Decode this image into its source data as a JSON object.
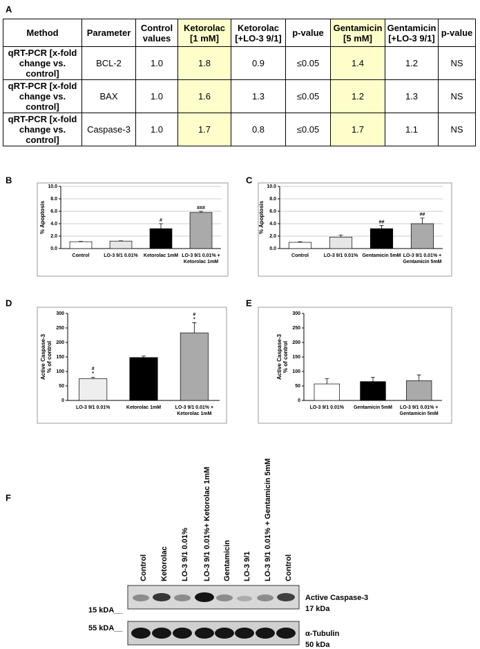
{
  "table": {
    "label": "A",
    "header": [
      "Method",
      "Parameter",
      "Control values",
      "Ketorolac [1 mM]",
      "Ketorolac [+LO-3 9/1]",
      "p-value",
      "Gentamicin [5 mM]",
      "Gentamicin [+LO-3 9/1]",
      "p-value"
    ],
    "highlight_columns": [
      3,
      6
    ],
    "highlight_color": "#ffffcc",
    "rows": [
      [
        "qRT-PCR [x-fold change vs. control]",
        "BCL-2",
        "1.0",
        "1.8",
        "0.9",
        "≤0.05",
        "1.4",
        "1.2",
        "NS"
      ],
      [
        "qRT-PCR [x-fold change vs. control]",
        "BAX",
        "1.0",
        "1.6",
        "1.3",
        "≤0.05",
        "1.2",
        "1.3",
        "NS"
      ],
      [
        "qRT-PCR [x-fold change vs. control]",
        "Caspase-3",
        "1.0",
        "1.7",
        "0.8",
        "≤0.05",
        "1.7",
        "1.1",
        "NS"
      ]
    ]
  },
  "chart_data": [
    {
      "label": "B",
      "type": "bar",
      "ylabel": [
        "% Apoptosis"
      ],
      "categories": [
        [
          "Control"
        ],
        [
          "LO-3 9/1 0.01%"
        ],
        [
          "Ketorolac 1mM"
        ],
        [
          "LO-3 9/1 0.01% +",
          "Ketorolac 1mM"
        ]
      ],
      "values": [
        1.1,
        1.2,
        3.2,
        5.8
      ],
      "errors": [
        0.05,
        0.05,
        0.8,
        0.2
      ],
      "annotations": [
        null,
        null,
        [
          "#"
        ],
        [
          "###"
        ]
      ],
      "colors": [
        "#ffffff",
        "#e6e6e6",
        "#000000",
        "#aaaaaa"
      ],
      "ylim": [
        0,
        10
      ],
      "yticks": [
        {
          "value": 0,
          "label": "0.0"
        },
        {
          "value": 2,
          "label": "2.0"
        },
        {
          "value": 4,
          "label": "4.0"
        },
        {
          "value": 6,
          "label": "6.0"
        },
        {
          "value": 8,
          "label": "8.0"
        },
        {
          "value": 10,
          "label": "10.0"
        }
      ],
      "grid": true
    },
    {
      "label": "C",
      "type": "bar",
      "ylabel": [
        "% Apoptosis"
      ],
      "categories": [
        [
          "Control"
        ],
        [
          "LO-3 9/1 0.01%"
        ],
        [
          "Gentamicin 5mM"
        ],
        [
          "LO-3 9/1 0.01% +",
          "Gentamicin 5mM"
        ]
      ],
      "values": [
        1.0,
        1.85,
        3.2,
        4.0
      ],
      "errors": [
        0.1,
        0.3,
        0.5,
        0.9
      ],
      "annotations": [
        null,
        null,
        [
          "##"
        ],
        [
          "##"
        ]
      ],
      "colors": [
        "#ffffff",
        "#e6e6e6",
        "#000000",
        "#aaaaaa"
      ],
      "ylim": [
        0,
        10
      ],
      "yticks": [
        {
          "value": 0,
          "label": "0.0"
        },
        {
          "value": 2,
          "label": "2.0"
        },
        {
          "value": 4,
          "label": "4.0"
        },
        {
          "value": 6,
          "label": "6.0"
        },
        {
          "value": 8,
          "label": "8.0"
        },
        {
          "value": 10,
          "label": "10.0"
        }
      ],
      "grid": true
    },
    {
      "label": "D",
      "type": "bar",
      "ylabel": [
        "Active Caspase-3",
        "% of control"
      ],
      "categories": [
        [
          "LO-3 9/1 0.01%"
        ],
        [
          "Ketorolac 1mM"
        ],
        [
          "LO-3 9/1 0.01% +",
          "Ketorolac 1mM"
        ]
      ],
      "values": [
        75,
        148,
        233
      ],
      "errors": [
        5,
        5,
        35
      ],
      "annotations": [
        [
          "#",
          "*"
        ],
        null,
        [
          "#",
          "*"
        ]
      ],
      "colors": [
        "#eeeeee",
        "#000000",
        "#aaaaaa"
      ],
      "ylim": [
        0,
        300
      ],
      "yticks": [
        0,
        50,
        100,
        150,
        200,
        250,
        300
      ],
      "grid": false
    },
    {
      "label": "E",
      "type": "bar",
      "ylabel": [
        "Active Caspase-3",
        "% of control"
      ],
      "categories": [
        [
          "LO-3 9/1 0.01%"
        ],
        [
          "Gentamicin 5mM"
        ],
        [
          "LO-3 9/1 0.01% +",
          "Gentamicin 5mM"
        ]
      ],
      "values": [
        57,
        65,
        68
      ],
      "errors": [
        18,
        15,
        20
      ],
      "annotations": [
        null,
        null,
        null
      ],
      "colors": [
        "#ffffff",
        "#000000",
        "#aaaaaa"
      ],
      "ylim": [
        0,
        300
      ],
      "yticks": [
        0,
        50,
        100,
        150,
        200,
        250,
        300
      ],
      "grid": false
    }
  ],
  "blot": {
    "label": "F",
    "lanes": [
      "Control",
      "Ketorolac",
      "LO-3 9/1 0.01%",
      "LO-3 9/1 0.01%+ Ketorolac 1mM",
      "Gentamicin",
      "LO-3 9/1",
      "LO-3 9/1 0.01% + Gentamicin 5mM",
      "Control"
    ],
    "markers": [
      "15 kDA__",
      "55 kDA__"
    ],
    "bands": [
      [
        "Active Caspase-3",
        "17 kDa"
      ],
      [
        "α-Tubulin",
        "50 kDa"
      ]
    ]
  }
}
